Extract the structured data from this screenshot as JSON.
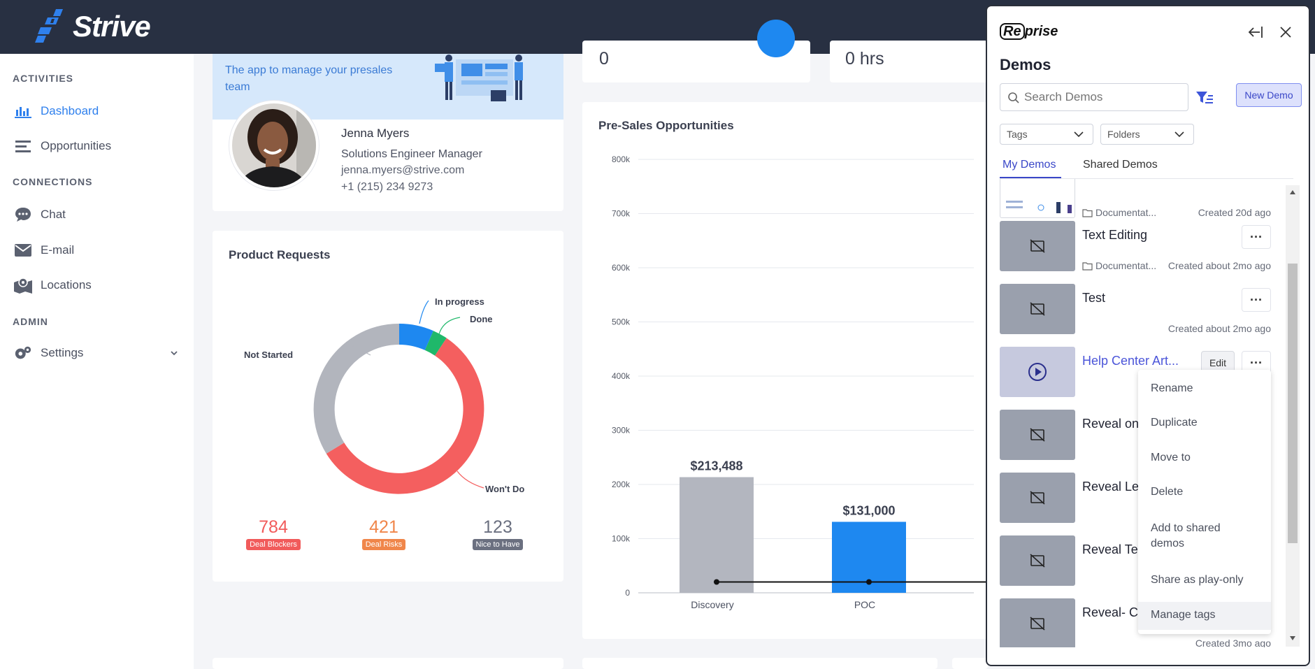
{
  "app": {
    "name": "Strive"
  },
  "sidebar": {
    "sections": [
      {
        "label": "ACTIVITIES"
      },
      {
        "label": "CONNECTIONS"
      },
      {
        "label": "ADMIN"
      }
    ],
    "items": [
      {
        "label": "Dashboard",
        "icon": "bar-chart-icon",
        "active": true
      },
      {
        "label": "Opportunities",
        "icon": "list-icon"
      },
      {
        "label": "Chat",
        "icon": "chat-icon"
      },
      {
        "label": "E-mail",
        "icon": "mail-icon"
      },
      {
        "label": "Locations",
        "icon": "map-pin-icon"
      },
      {
        "label": "Settings",
        "icon": "gear-icon"
      }
    ]
  },
  "profile": {
    "banner_text": "The app to manage your presales team",
    "name": "Jenna Myers",
    "role": "Solutions Engineer Manager",
    "email": "jenna.myers@strive.com",
    "phone": "+1 (215) 234 9273"
  },
  "stats": {
    "left_value": "0",
    "right_value": "0 hrs"
  },
  "product_requests": {
    "title": "Product Requests",
    "labels": {
      "in_progress": "In progress",
      "done": "Done",
      "not_started": "Not Started",
      "wont_do": "Won't Do"
    },
    "counts": [
      {
        "value": "784",
        "label": "Deal Blockers",
        "color": "#f15b5b"
      },
      {
        "value": "421",
        "label": "Deal Risks",
        "color": "#f0864a"
      },
      {
        "value": "123",
        "label": "Nice to Have",
        "color": "#6b7080"
      }
    ]
  },
  "chart_data": {
    "type": "bar",
    "title": "Pre-Sales Opportunities",
    "categories": [
      "Discovery",
      "POC"
    ],
    "values": [
      213488,
      131000
    ],
    "value_labels": [
      "$213,488",
      "$131,000"
    ],
    "yticks": [
      "0",
      "100k",
      "200k",
      "300k",
      "400k",
      "500k",
      "600k",
      "700k",
      "800k"
    ],
    "ylim": [
      0,
      800000
    ],
    "bar_colors": [
      "#b3b6bf",
      "#1e88f0"
    ],
    "overlay_line_value": 20000
  },
  "reprise": {
    "logo_bracket": "Re",
    "logo_rest": "prise",
    "title": "Demos",
    "search_placeholder": "Search Demos",
    "new_demo": "New Demo",
    "tags_label": "Tags",
    "folders_label": "Folders",
    "tabs": [
      "My Demos",
      "Shared Demos"
    ],
    "partial_row": {
      "folder": "Documentat...",
      "created": "Created 20d ago"
    },
    "demos": [
      {
        "title": "Text Editing",
        "folder": "Documentat...",
        "created": "Created about 2mo ago"
      },
      {
        "title": "Test",
        "folder": "",
        "created": "Created about 2mo ago"
      },
      {
        "title": "Help Center Art...",
        "folder": "",
        "created": "",
        "edit": "Edit",
        "highlight": true
      },
      {
        "title": "Reveal on",
        "folder": "",
        "created": ""
      },
      {
        "title": "Reveal Le",
        "folder": "",
        "created": ""
      },
      {
        "title": "Reveal Te",
        "folder": "",
        "created": ""
      },
      {
        "title": "Reveal- C",
        "folder": "",
        "created": "Created 3mo ago"
      }
    ],
    "menu": [
      "Rename",
      "Duplicate",
      "Move to",
      "Delete",
      "Add to shared demos",
      "Share as play-only",
      "Manage tags"
    ]
  }
}
